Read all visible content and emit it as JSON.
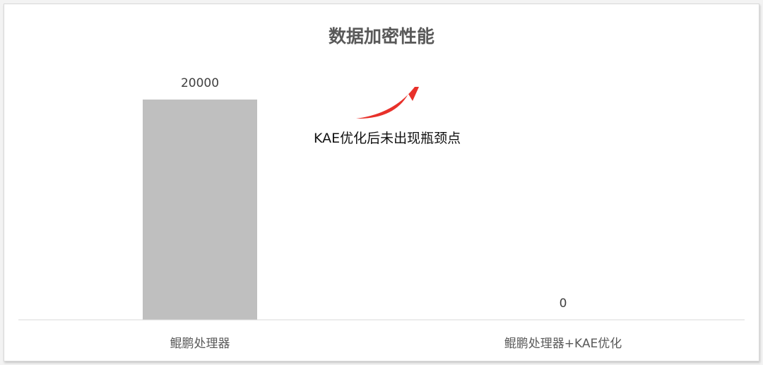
{
  "chart_data": {
    "type": "bar",
    "title": "数据加密性能",
    "categories": [
      "鲲鹏处理器",
      "鲲鹏处理器+KAE优化"
    ],
    "values": [
      20000,
      0
    ],
    "data_labels": [
      "20000",
      "0"
    ],
    "ylim": [
      0,
      25000
    ],
    "grid": false,
    "legend": "none",
    "bar_color": "#bfbfbf",
    "annotation": {
      "text": "KAE优化后未出现瓶颈点",
      "arrow_color": "#e8312a"
    }
  }
}
